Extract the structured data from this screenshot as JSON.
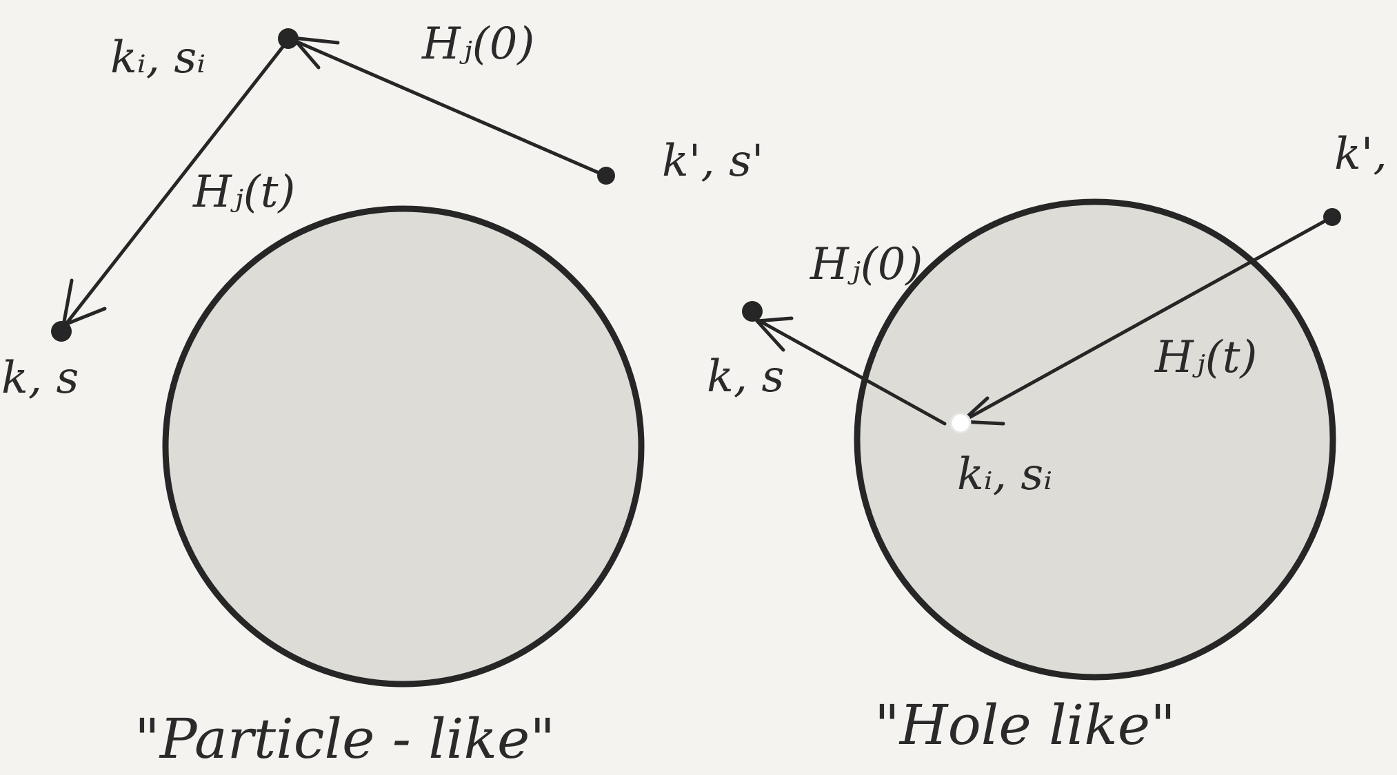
{
  "left_panel": {
    "caption": "\"Particle - like\"",
    "labels": {
      "ki_si": "kᵢ, sᵢ",
      "kp_sp": "k', s'",
      "k_s": "k, s",
      "hj0": "Hⱼ(0)",
      "hjt": "Hⱼ(t)"
    }
  },
  "right_panel": {
    "caption": "\"Hole like\"",
    "labels": {
      "ki_si": "kᵢ, sᵢ",
      "kp_sp": "k', s'",
      "k_s": "k, s",
      "hj0": "Hⱼ(0)",
      "hjt": "Hⱼ(t)"
    }
  },
  "colors": {
    "background": "#f4f3ef",
    "ink": "#262626",
    "sea_fill": "#dddcd7",
    "hole": "#ffffff"
  }
}
